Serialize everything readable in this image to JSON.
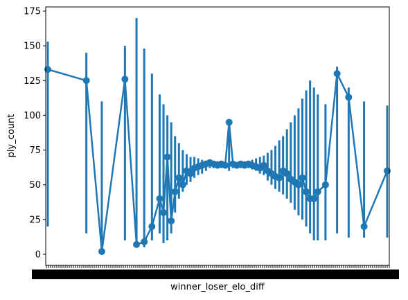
{
  "chart_data": {
    "type": "pointplot",
    "title": "",
    "xlabel": "winner_loser_elo_diff",
    "ylabel": "ply_count",
    "ylim": [
      -8,
      178
    ],
    "yticks": [
      0,
      25,
      50,
      75,
      100,
      125,
      150,
      175
    ],
    "ytick_labels": [
      "0",
      "25",
      "50",
      "75",
      "100",
      "125",
      "150",
      "175"
    ],
    "x_categories_note": "hundreds of overlapping integer categories; tick labels illegible",
    "grid": false,
    "legend": "none",
    "series_color": "#1f77b4",
    "series": [
      {
        "x": [
          -5000,
          -4000,
          -3600,
          -3000,
          -2700,
          -2500,
          -2300,
          -2100,
          -2000,
          -1900,
          -1800,
          -1700,
          -1600,
          -1500,
          -1400,
          -1300,
          -1200,
          -1100,
          -1000,
          -900,
          -800,
          -700,
          -600,
          -500,
          -400,
          -300,
          -200,
          -100,
          0,
          100,
          200,
          300,
          400,
          500,
          600,
          700,
          800,
          900,
          1000,
          1100,
          1200,
          1300,
          1400,
          1500,
          1600,
          1700,
          1800,
          1900,
          2000,
          2200,
          2500,
          2800,
          3200,
          3800
        ],
        "y": [
          133,
          125,
          2,
          126,
          7,
          9,
          20,
          40,
          30,
          70,
          24,
          45,
          55,
          50,
          60,
          58,
          62,
          63,
          64,
          65,
          66,
          65,
          64,
          65,
          64,
          95,
          65,
          64,
          65,
          64,
          65,
          64,
          63,
          62,
          64,
          60,
          58,
          56,
          55,
          60,
          58,
          54,
          52,
          50,
          55,
          45,
          40,
          40,
          45,
          50,
          130,
          113,
          20,
          60
        ],
        "lower": [
          20,
          15,
          2,
          10,
          5,
          5,
          10,
          15,
          8,
          10,
          15,
          30,
          40,
          45,
          50,
          52,
          55,
          57,
          58,
          60,
          62,
          62,
          62,
          62,
          62,
          60,
          62,
          62,
          62,
          62,
          62,
          61,
          60,
          58,
          57,
          53,
          50,
          47,
          45,
          43,
          40,
          37,
          32,
          28,
          25,
          20,
          15,
          10,
          10,
          10,
          15,
          12,
          12,
          12
        ],
        "upper": [
          153,
          145,
          110,
          150,
          170,
          148,
          130,
          115,
          108,
          100,
          95,
          85,
          80,
          75,
          72,
          70,
          70,
          69,
          68,
          67,
          67,
          67,
          67,
          66,
          66,
          95,
          66,
          66,
          67,
          67,
          67,
          68,
          69,
          70,
          71,
          73,
          75,
          78,
          82,
          85,
          90,
          95,
          100,
          105,
          112,
          118,
          125,
          120,
          115,
          108,
          135,
          120,
          110,
          107
        ]
      }
    ]
  }
}
